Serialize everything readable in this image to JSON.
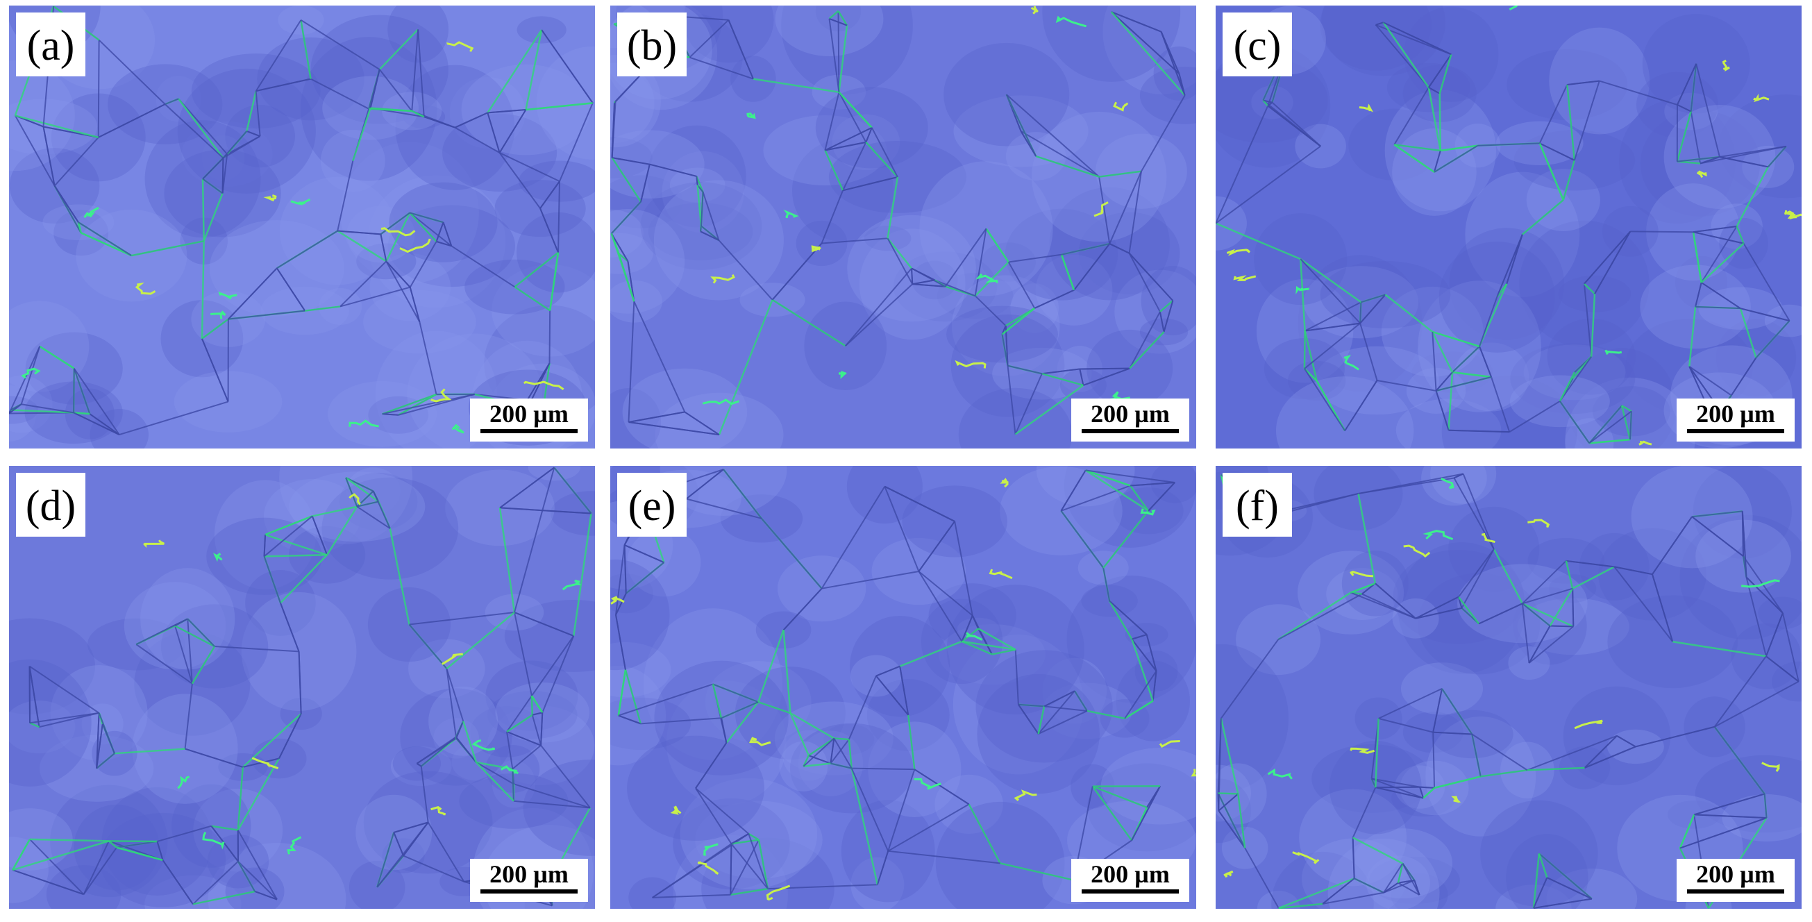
{
  "panels": [
    {
      "label": "(a)",
      "scale_bar": "200 µm"
    },
    {
      "label": "(b)",
      "scale_bar": "200 µm"
    },
    {
      "label": "(c)",
      "scale_bar": "200 µm"
    },
    {
      "label": "(d)",
      "scale_bar": "200 µm"
    },
    {
      "label": "(e)",
      "scale_bar": "200 µm"
    },
    {
      "label": "(f)",
      "scale_bar": "200 µm"
    }
  ]
}
